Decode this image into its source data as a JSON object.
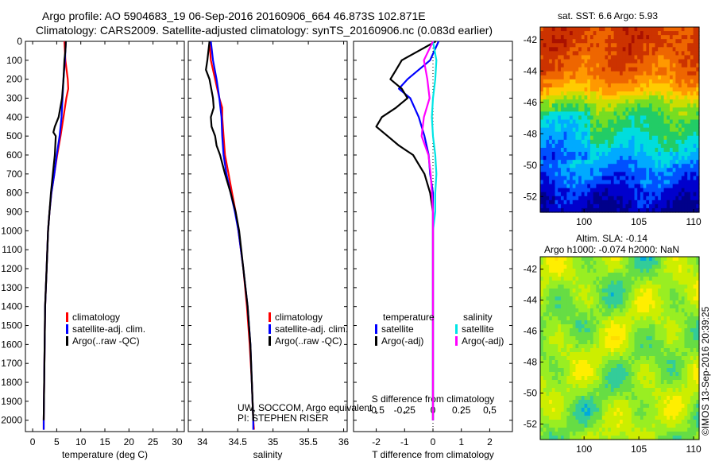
{
  "header": {
    "line1": "Argo profile: AO 5904683_19 06-Sep-2016 20160906_664 46.873S 102.871E",
    "line2": "Climatology: CARS2009. Satellite-adjusted climatology: synTS_20160906.nc (0.083d earlier)"
  },
  "colors": {
    "climatology": "#ff0000",
    "satellite": "#0000ff",
    "argo": "#000000",
    "sal_satellite": "#00e5e5",
    "sal_argo": "#ff00ff",
    "dotted": "#000000"
  },
  "chart_data": [
    {
      "type": "line",
      "id": "temperature",
      "xlabel": "temperature (deg C)",
      "xticks": [
        0,
        5,
        10,
        15,
        20,
        25,
        30
      ],
      "xlim": [
        -1.5,
        31.5
      ],
      "ylim": [
        0,
        2060
      ],
      "yticks": [
        0,
        100,
        200,
        300,
        400,
        500,
        600,
        700,
        800,
        900,
        1000,
        1100,
        1200,
        1300,
        1400,
        1500,
        1600,
        1700,
        1800,
        1900,
        2000
      ],
      "legend": [
        "climatology",
        "satellite-adj. clim.",
        "Argo(..raw -QC)"
      ],
      "series": [
        {
          "name": "climatology",
          "color": "climatology",
          "depth": [
            0,
            100,
            200,
            250,
            300,
            400,
            500,
            600,
            700,
            800,
            900,
            1000,
            1200,
            1400,
            1600,
            1800,
            2000,
            2050
          ],
          "values": [
            6.6,
            6.8,
            7.3,
            7.4,
            7.0,
            6.4,
            5.8,
            5.1,
            4.5,
            3.9,
            3.5,
            3.2,
            2.9,
            2.6,
            2.5,
            2.4,
            2.3,
            2.3
          ]
        },
        {
          "name": "satellite-adj. clim.",
          "color": "satellite",
          "depth": [
            0,
            100,
            200,
            300,
            400,
            500,
            600,
            700,
            800,
            900,
            1000,
            1200,
            1400,
            1600,
            1800,
            2000,
            2050
          ],
          "values": [
            6.9,
            6.7,
            6.4,
            6.2,
            6.0,
            5.6,
            5.0,
            4.5,
            3.9,
            3.5,
            3.2,
            2.9,
            2.6,
            2.5,
            2.4,
            2.3,
            2.3
          ]
        },
        {
          "name": "Argo(..raw -QC)",
          "color": "argo",
          "depth": [
            0,
            50,
            100,
            200,
            300,
            400,
            450,
            480,
            500,
            550,
            600,
            700,
            800,
            900,
            1000,
            1200,
            1400,
            1600,
            1800,
            2000
          ],
          "values": [
            6.9,
            6.8,
            6.6,
            6.4,
            6.1,
            5.4,
            4.6,
            4.3,
            4.8,
            4.7,
            4.6,
            4.2,
            3.8,
            3.5,
            3.2,
            2.9,
            2.6,
            2.5,
            2.4,
            2.3
          ]
        }
      ]
    },
    {
      "type": "line",
      "id": "salinity",
      "xlabel": "salinity",
      "xticks": [
        34,
        34.5,
        35,
        35.5,
        36
      ],
      "xtick_labels": [
        "34",
        "34.5",
        "35",
        "35.5",
        "36"
      ],
      "xlim": [
        33.8,
        36.05
      ],
      "ylim": [
        0,
        2060
      ],
      "legend": [
        "climatology",
        "satellite-adj. clim.",
        "Argo(..raw -QC)"
      ],
      "annotation": [
        "UW, SOCCOM, Argo equivalent",
        "PI: STEPHEN RISER"
      ],
      "series": [
        {
          "name": "climatology",
          "color": "climatology",
          "depth": [
            0,
            100,
            200,
            300,
            350,
            400,
            500,
            600,
            700,
            800,
            900,
            1000,
            1200,
            1400,
            1600,
            1800,
            2000,
            2050
          ],
          "values": [
            34.1,
            34.12,
            34.18,
            34.24,
            34.28,
            34.28,
            34.3,
            34.32,
            34.37,
            34.42,
            34.47,
            34.51,
            34.58,
            34.63,
            34.67,
            34.7,
            34.72,
            34.73
          ]
        },
        {
          "name": "satellite-adj. clim.",
          "color": "satellite",
          "depth": [
            0,
            100,
            200,
            300,
            400,
            500,
            600,
            700,
            800,
            900,
            1000,
            1200,
            1400,
            1600,
            1800,
            2000,
            2050
          ],
          "values": [
            34.12,
            34.15,
            34.2,
            34.24,
            34.27,
            34.28,
            34.3,
            34.34,
            34.4,
            34.46,
            34.51,
            34.58,
            34.64,
            34.68,
            34.7,
            34.72,
            34.72
          ]
        },
        {
          "name": "Argo(..raw -QC)",
          "color": "argo",
          "depth": [
            0,
            100,
            150,
            200,
            300,
            350,
            400,
            450,
            500,
            550,
            600,
            700,
            800,
            900,
            1000,
            1100,
            1200,
            1300,
            1400,
            1500,
            1600,
            1700,
            1800,
            1900,
            2000
          ],
          "values": [
            34.1,
            34.07,
            34.05,
            34.1,
            34.15,
            34.16,
            34.12,
            34.13,
            34.18,
            34.2,
            34.25,
            34.32,
            34.4,
            34.47,
            34.52,
            34.55,
            34.58,
            34.61,
            34.64,
            34.66,
            34.68,
            34.69,
            34.7,
            34.71,
            34.72
          ]
        }
      ]
    },
    {
      "type": "line",
      "id": "difference",
      "xlabel": "T difference from climatology",
      "top_axis_label": "S difference from climatology",
      "xticks": [
        -2,
        -1,
        0,
        1,
        2
      ],
      "xlim": [
        -2.8,
        2.8
      ],
      "top_xticks": [
        -0.5,
        -0.25,
        0,
        0.25,
        0.5
      ],
      "top_xtick_labels": [
        "-0.5",
        "-0.25",
        "0",
        "0.25",
        "0.5"
      ],
      "top_xlim": [
        -0.7,
        0.7
      ],
      "ylim": [
        0,
        2060
      ],
      "legend_groups": [
        {
          "title": "temperature",
          "entries": [
            "satellite",
            "Argo(-adj)"
          ]
        },
        {
          "title": "salinity",
          "entries": [
            "satellite",
            "Argo(-adj)"
          ]
        }
      ],
      "series": [
        {
          "name": "satellite",
          "group": "temperature",
          "color": "satellite",
          "depth": [
            0,
            100,
            200,
            250,
            300,
            400,
            500,
            600,
            700,
            800,
            900,
            1000,
            1200,
            1400,
            1600,
            1800,
            2000
          ],
          "values": [
            0.2,
            -0.1,
            -0.9,
            -1.2,
            -0.8,
            -0.5,
            -0.3,
            -0.15,
            -0.1,
            0,
            0,
            0,
            0,
            0,
            0,
            0,
            0
          ]
        },
        {
          "name": "Argo(-adj)",
          "group": "temperature",
          "color": "argo",
          "depth": [
            0,
            50,
            100,
            150,
            200,
            250,
            300,
            350,
            400,
            450,
            500,
            550,
            600,
            650,
            700,
            800,
            900,
            1000,
            1200,
            1400,
            1600,
            1800,
            2000
          ],
          "values": [
            0.1,
            -0.5,
            -1.1,
            -1.3,
            -1.5,
            -1.1,
            -0.9,
            -1.3,
            -1.8,
            -2.0,
            -1.6,
            -1.2,
            -0.7,
            -0.5,
            -0.3,
            -0.1,
            0,
            0,
            0,
            0,
            0,
            0,
            0
          ]
        },
        {
          "name": "satellite",
          "group": "salinity",
          "color": "sal_satellite",
          "depth": [
            0,
            100,
            200,
            300,
            400,
            500,
            600,
            700,
            800,
            900,
            1000,
            1200,
            1400,
            1600,
            1800,
            2000
          ],
          "values": [
            0.0,
            0.03,
            0.02,
            0.0,
            -0.01,
            0.0,
            0.02,
            0.03,
            0.02,
            0.02,
            0.0,
            0.0,
            0.0,
            0.0,
            0.0,
            0.0
          ]
        },
        {
          "name": "Argo(-adj)",
          "group": "salinity",
          "color": "sal_argo",
          "depth": [
            0,
            100,
            200,
            300,
            400,
            500,
            600,
            700,
            800,
            900,
            1000,
            1200,
            1400,
            1600,
            1800,
            2000
          ],
          "values": [
            0.0,
            -0.08,
            -0.05,
            -0.03,
            -0.08,
            -0.1,
            -0.04,
            -0.02,
            -0.01,
            0.0,
            0.0,
            0.0,
            0.0,
            0.0,
            0.0,
            0.0
          ]
        }
      ]
    },
    {
      "type": "heatmap",
      "id": "sst_map",
      "title": "sat. SST: 6.6  Argo: 5.93",
      "xticks": [
        100,
        105,
        110
      ],
      "xlim": [
        96,
        110.5
      ],
      "yticks": [
        -42,
        -44,
        -46,
        -48,
        -50,
        -52
      ],
      "ylim": [
        -53,
        -41.2
      ],
      "palette": [
        "#00008b",
        "#0000cd",
        "#0050ff",
        "#00aaff",
        "#00dddd",
        "#22cc66",
        "#77dd22",
        "#ccdd00",
        "#ffcc00",
        "#ff9900",
        "#ee6600",
        "#cc3300",
        "#aa1100"
      ],
      "bands": [
        {
          "lat": -42,
          "level": 10.8
        },
        {
          "lat": -43,
          "level": 10.4
        },
        {
          "lat": -44,
          "level": 9.9
        },
        {
          "lat": -45,
          "level": 8.6
        },
        {
          "lat": -46,
          "level": 6.1
        },
        {
          "lat": -47,
          "level": 5.2
        },
        {
          "lat": -48,
          "level": 4.6
        },
        {
          "lat": -49,
          "level": 3.6
        },
        {
          "lat": -50,
          "level": 2.6
        },
        {
          "lat": -51,
          "level": 1.8
        },
        {
          "lat": -52,
          "level": 0.8
        },
        {
          "lat": -53,
          "level": 0.3
        }
      ]
    },
    {
      "type": "heatmap",
      "id": "sla_map",
      "title_line1": "Altim. SLA: -0.14",
      "title_line2": "Argo h1000: -0.074  h2000: NaN",
      "xticks": [
        100,
        105,
        110
      ],
      "xlim": [
        96,
        110.5
      ],
      "yticks": [
        -42,
        -44,
        -46,
        -48,
        -50,
        -52
      ],
      "ylim": [
        -53,
        -41.2
      ],
      "palette": [
        "#00aadd",
        "#33cc99",
        "#66dd44",
        "#99ee22",
        "#ccee00",
        "#ffee00",
        "#ffdd00"
      ],
      "mean_level": 3.0
    }
  ],
  "watermark": "©IMOS 13-Sep-2016 20:39:25"
}
